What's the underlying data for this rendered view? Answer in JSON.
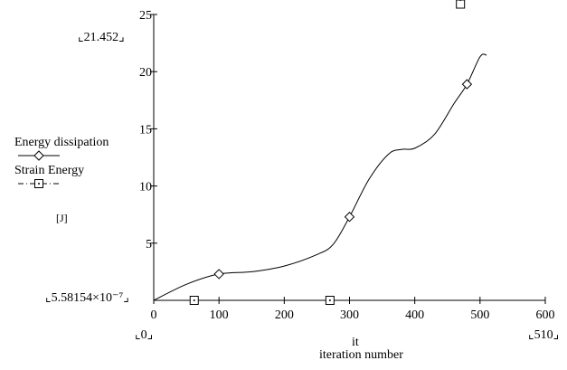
{
  "chart_data": {
    "type": "line",
    "title": "",
    "xlabel": "it",
    "xlabel_sub": "iteration number",
    "ylabel": "[J]",
    "xlim": [
      0,
      600
    ],
    "ylim": [
      0,
      25
    ],
    "x_ticks": [
      0,
      100,
      200,
      300,
      400,
      500,
      600
    ],
    "y_ticks": [
      5,
      10,
      15,
      20,
      25
    ],
    "x_range_labels": {
      "min": "0",
      "max": "510"
    },
    "y_range_labels": {
      "min": "5.58154×10⁻⁷",
      "max": "21.452"
    },
    "grid": false,
    "legend_position": "left",
    "series": [
      {
        "name": "Energy dissipation",
        "marker": "diamond",
        "line_style": "solid",
        "color": "#000000",
        "x": [
          0,
          50,
          100,
          150,
          200,
          250,
          275,
          300,
          330,
          360,
          380,
          400,
          430,
          460,
          480,
          500,
          510
        ],
        "y": [
          0,
          1.4,
          2.3,
          2.5,
          3.0,
          4.0,
          4.9,
          7.3,
          10.6,
          12.8,
          13.2,
          13.3,
          14.5,
          17.2,
          18.9,
          21.3,
          21.45
        ],
        "marker_x": [
          100,
          300,
          480
        ],
        "marker_y": [
          2.3,
          7.3,
          18.9
        ]
      },
      {
        "name": "Strain Energy",
        "marker": "square-dot",
        "line_style": "dash-dot",
        "color": "#000000",
        "x": [
          0,
          510
        ],
        "y": [
          5.58154e-07,
          5.58154e-07
        ],
        "marker_x": [
          62,
          270,
          470
        ],
        "marker_y": [
          0,
          0
        ]
      }
    ]
  }
}
